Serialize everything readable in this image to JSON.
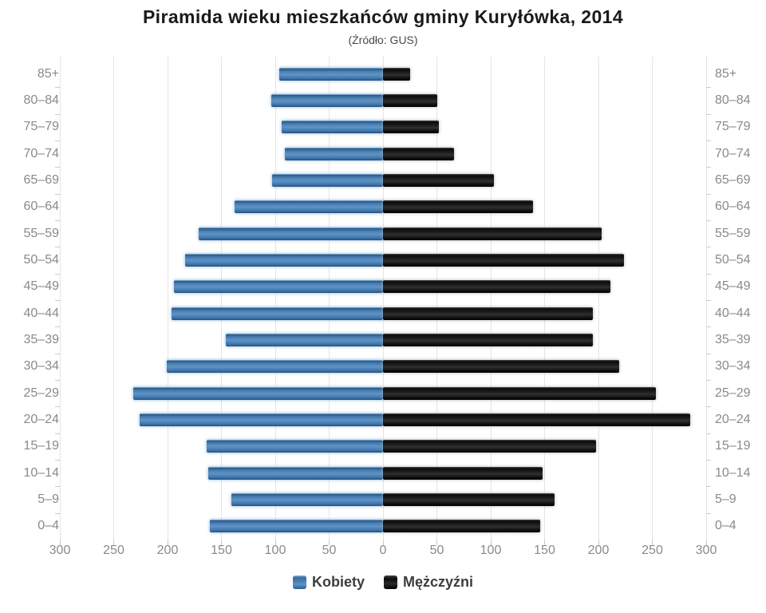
{
  "title": "Piramida wieku mieszkańców gminy Kuryłówka, 2014",
  "subtitle": "(Źródło: GUS)",
  "colors": {
    "female_bar": "#4a80b4",
    "male_bar": "#111111",
    "gridline": "#e4e4e4",
    "axis_label": "#8a8a8a",
    "title_text": "#1a1a1a",
    "legend_text": "#3d3d3d"
  },
  "chart_data": {
    "type": "bar",
    "subtype": "population-pyramid",
    "title": "Piramida wieku mieszkańców gminy Kuryłówka, 2014",
    "subtitle": "(Źródło: GUS)",
    "categories": [
      "85+",
      "80–84",
      "75–79",
      "70–74",
      "65–69",
      "60–64",
      "55–59",
      "50–54",
      "45–49",
      "40–44",
      "35–39",
      "30–34",
      "25–29",
      "20–24",
      "15–19",
      "10–14",
      "5–9",
      "0–4"
    ],
    "series": [
      {
        "name": "Kobiety",
        "side": "left",
        "color": "#4a80b4",
        "values": [
          96,
          104,
          94,
          91,
          103,
          138,
          171,
          184,
          194,
          196,
          146,
          201,
          232,
          226,
          164,
          162,
          141,
          161
        ]
      },
      {
        "name": "Mężczyźni",
        "side": "right",
        "color": "#111111",
        "values": [
          25,
          50,
          52,
          66,
          103,
          139,
          203,
          224,
          211,
          195,
          195,
          219,
          253,
          285,
          198,
          148,
          159,
          146
        ]
      }
    ],
    "x_tick_labels": [
      "300",
      "250",
      "200",
      "150",
      "100",
      "50",
      "0",
      "50",
      "100",
      "150",
      "200",
      "250",
      "300"
    ],
    "xlim_per_side": [
      0,
      300
    ],
    "x_tick_step": 50,
    "mirrored": true,
    "grid": true,
    "legend_position": "bottom",
    "xlabel": "",
    "ylabel": ""
  }
}
